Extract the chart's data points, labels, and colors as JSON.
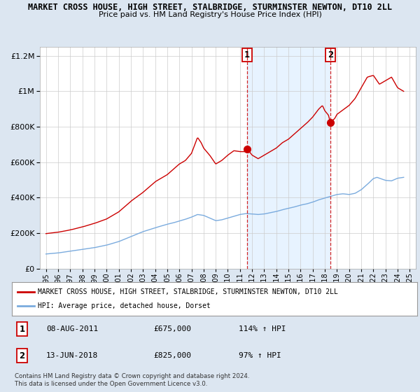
{
  "title": "MARKET CROSS HOUSE, HIGH STREET, STALBRIDGE, STURMINSTER NEWTON, DT10 2LL",
  "subtitle": "Price paid vs. HM Land Registry's House Price Index (HPI)",
  "property_label": "MARKET CROSS HOUSE, HIGH STREET, STALBRIDGE, STURMINSTER NEWTON, DT10 2LL",
  "hpi_label": "HPI: Average price, detached house, Dorset",
  "footnote": "Contains HM Land Registry data © Crown copyright and database right 2024.\nThis data is licensed under the Open Government Licence v3.0.",
  "transaction1": {
    "num": "1",
    "date": "08-AUG-2011",
    "price": "£675,000",
    "hpi": "114% ↑ HPI"
  },
  "transaction2": {
    "num": "2",
    "date": "13-JUN-2018",
    "price": "£825,000",
    "hpi": "97% ↑ HPI"
  },
  "t1_year": 2011.6,
  "t2_year": 2018.45,
  "t1_price": 675000,
  "t2_price": 825000,
  "property_color": "#cc0000",
  "hpi_color": "#7aabde",
  "shade_color": "#ddeeff",
  "background_color": "#dce6f1",
  "plot_bg_color": "#ffffff",
  "ylim": [
    0,
    1250000
  ],
  "ytick_max": 1200000,
  "xlim_start": 1994.5,
  "xlim_end": 2025.5
}
